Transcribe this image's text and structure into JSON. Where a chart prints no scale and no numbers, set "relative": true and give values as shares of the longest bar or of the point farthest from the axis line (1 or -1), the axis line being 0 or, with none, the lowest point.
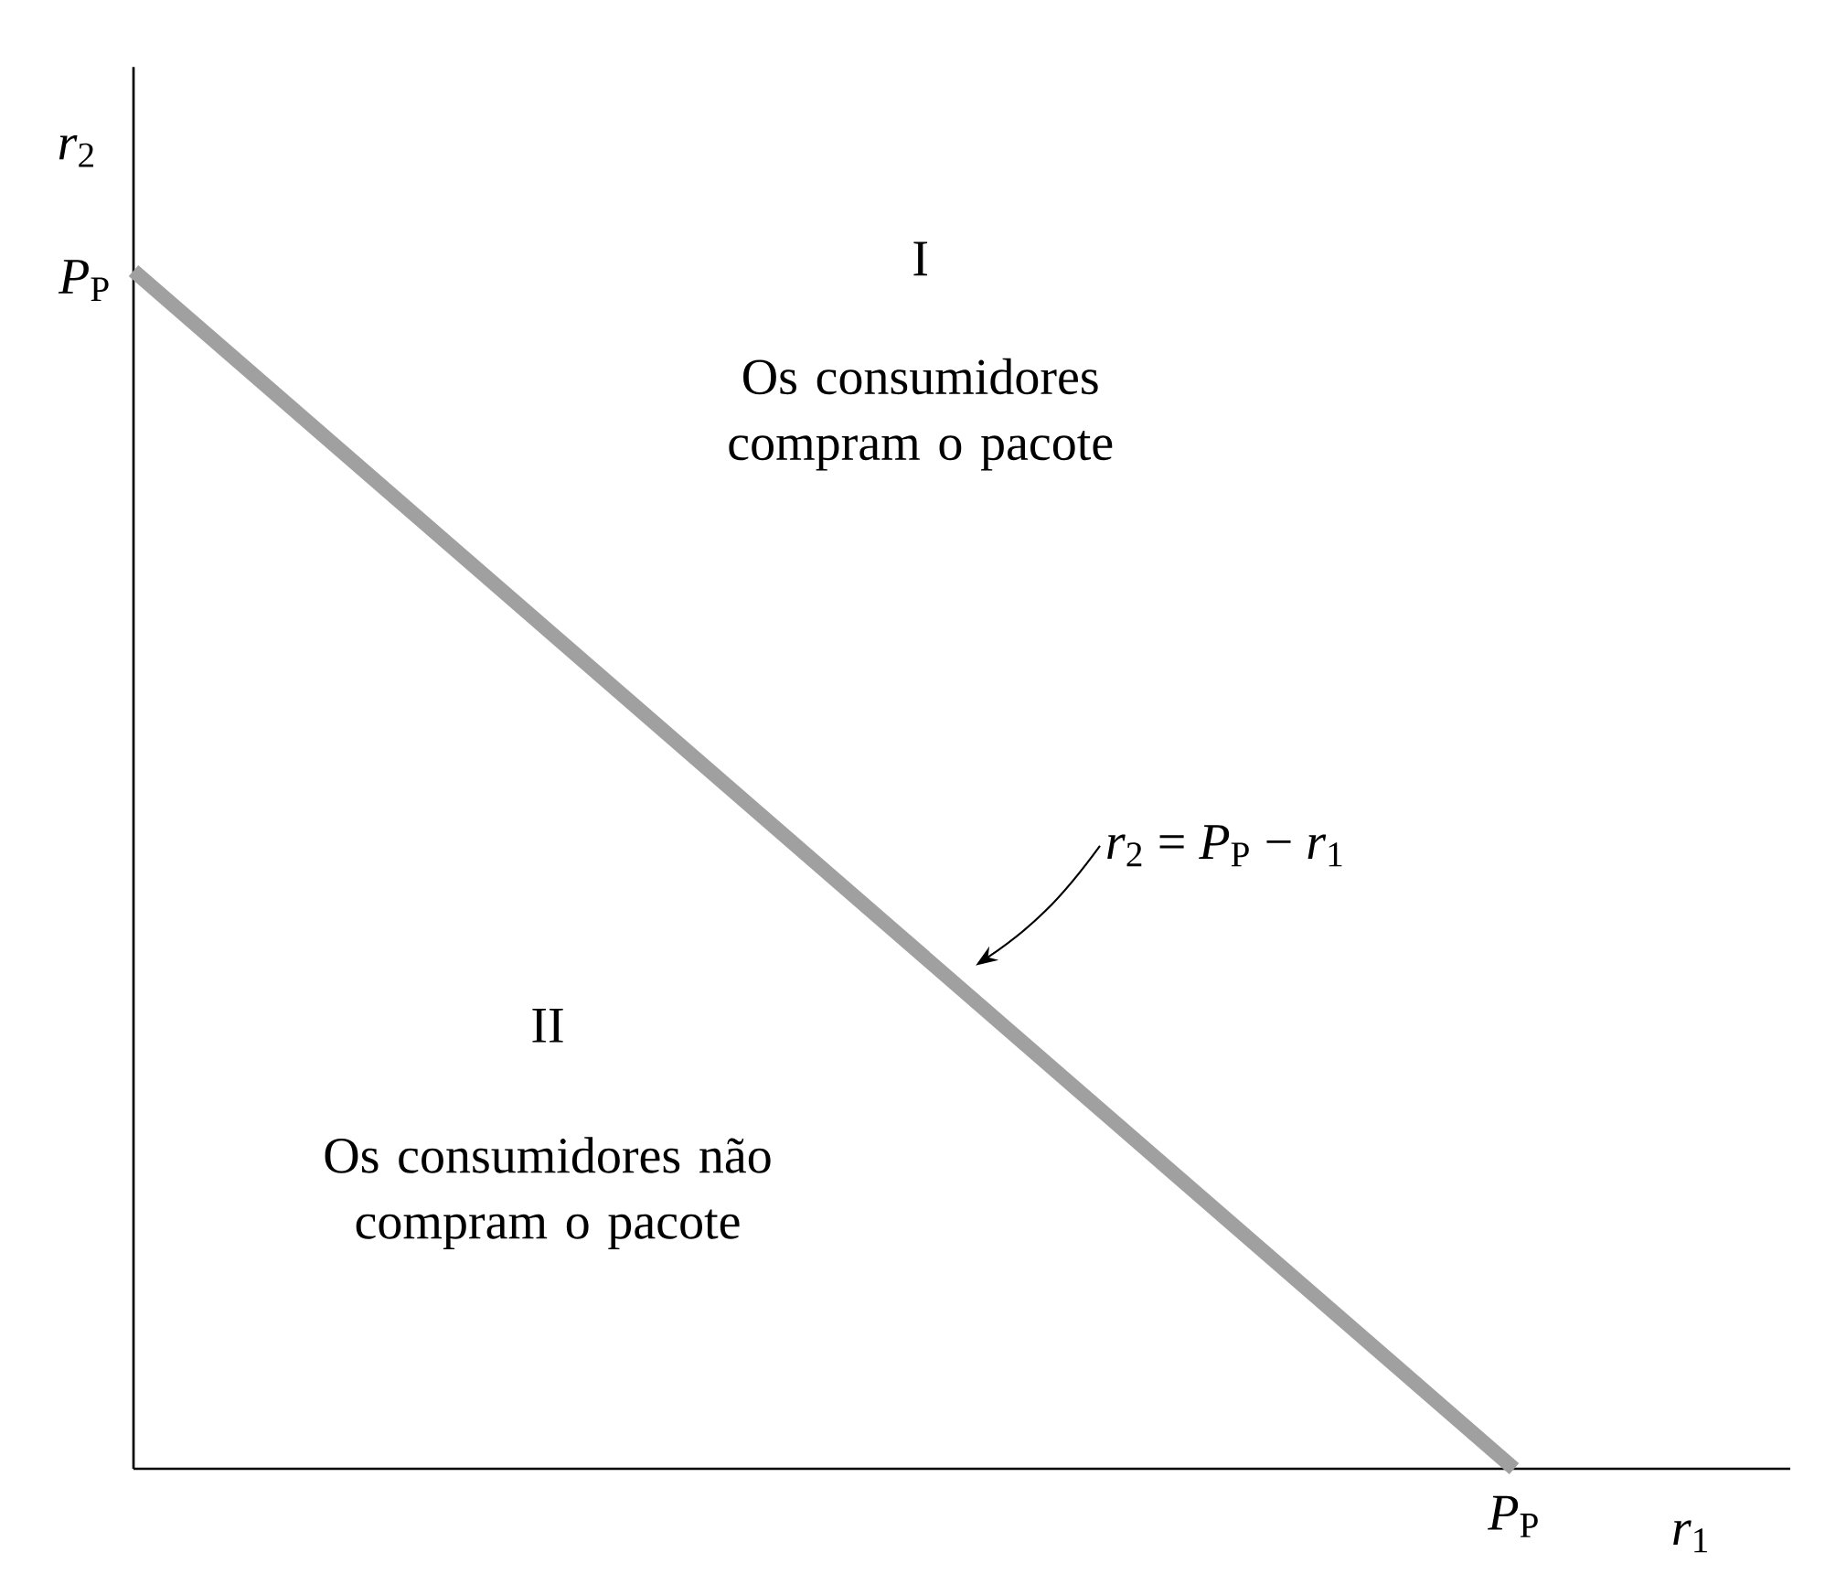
{
  "chart_data": {
    "type": "line",
    "relative": true,
    "xlabel": "*r*$_{1}$",
    "ylabel": "*r*$_{2}$",
    "categories": [
      null,
      null
    ],
    "values": [
      1,
      0
    ],
    "color": "#a0a0a0",
    "annotations": [
      "I",
      "Os consumidores compram o pacote",
      "II",
      "Os consumidores não compram o pacote",
      "*r*$_{2}$ = *P*$_{P}$ − *r*$_{1}$",
      "*P*$_{P}$",
      "*P*$_{P}$"
    ]
  }
}
